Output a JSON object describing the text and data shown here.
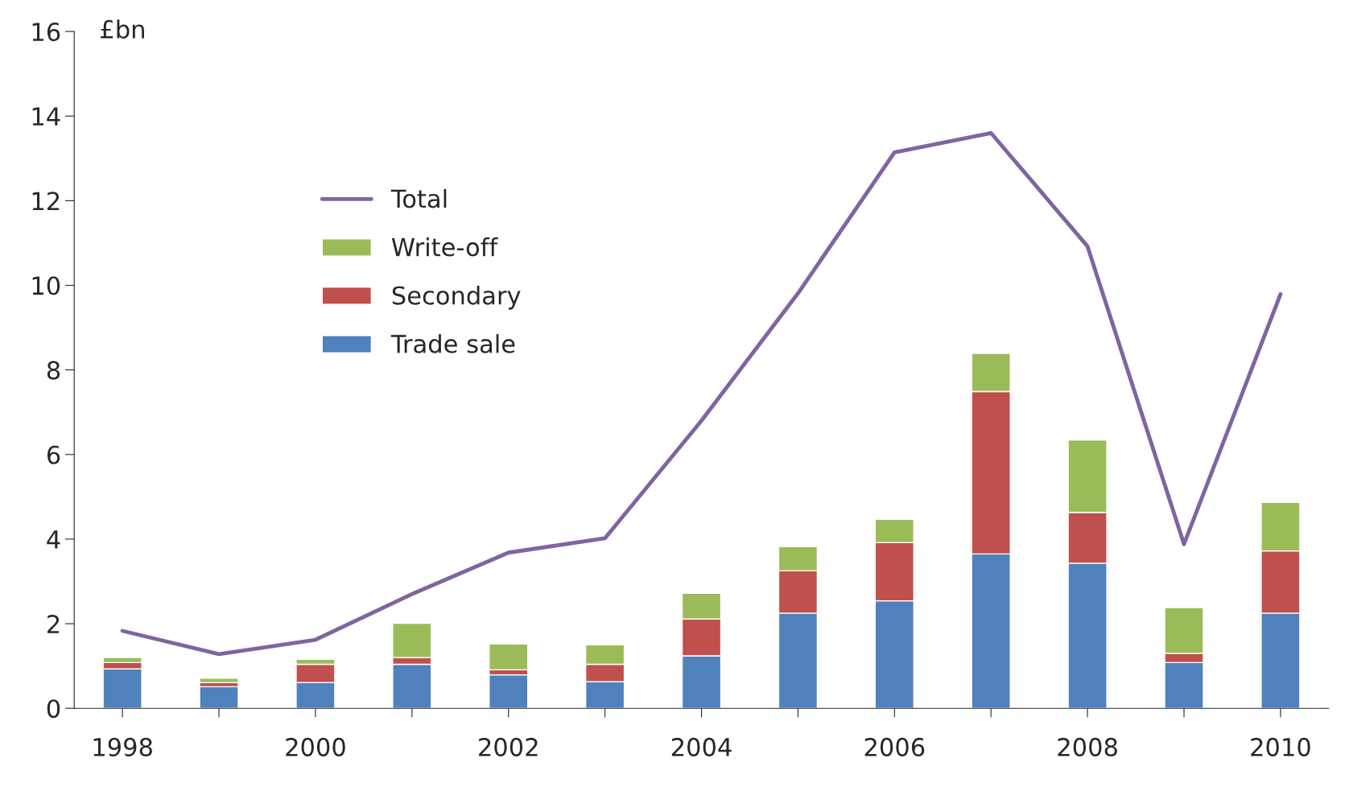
{
  "chart_data": {
    "type": "bar",
    "stacked": true,
    "ylabel": "£bn",
    "categories": [
      "1998",
      null,
      "2000",
      null,
      "2002",
      null,
      "2004",
      null,
      "2006",
      null,
      "2008",
      null,
      "2010"
    ],
    "series": [
      {
        "name": "Trade sale",
        "color": "#4f81bd",
        "values": [
          0.93,
          0.51,
          0.61,
          1.04,
          0.79,
          0.63,
          1.24,
          2.25,
          2.54,
          3.65,
          3.43,
          1.08,
          2.25
        ]
      },
      {
        "name": "Secondary",
        "color": "#c0504d",
        "values": [
          0.15,
          0.1,
          0.43,
          0.16,
          0.12,
          0.41,
          0.87,
          1.0,
          1.38,
          3.84,
          1.2,
          0.22,
          1.47
        ]
      },
      {
        "name": "Write-off",
        "color": "#9bbb59",
        "values": [
          0.12,
          0.1,
          0.12,
          0.81,
          0.61,
          0.46,
          0.61,
          0.57,
          0.55,
          0.9,
          1.71,
          1.08,
          1.15
        ]
      },
      {
        "name": "Total",
        "type": "line",
        "color": "#8064a2",
        "values": [
          1.83,
          1.28,
          1.62,
          2.7,
          3.68,
          4.02,
          6.8,
          9.81,
          13.14,
          13.6,
          10.92,
          3.88,
          9.79
        ]
      }
    ],
    "ylim": [
      0,
      16
    ],
    "yticks": [
      0,
      2,
      4,
      6,
      8,
      10,
      12,
      14,
      16
    ],
    "grid": false,
    "legend": "top left"
  }
}
